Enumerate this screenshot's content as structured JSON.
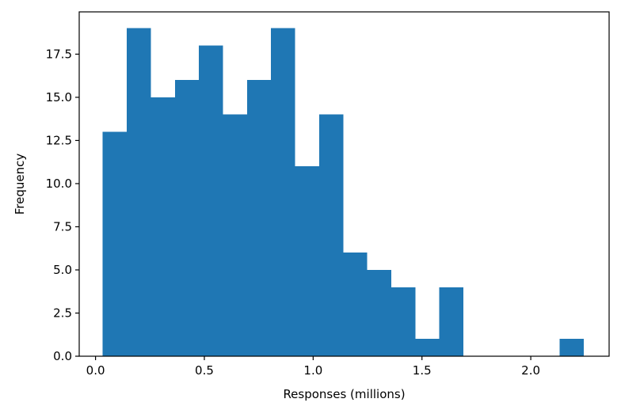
{
  "chart_data": {
    "type": "bar",
    "title": "",
    "xlabel": "Responses (millions)",
    "ylabel": "Frequency",
    "xlim": [
      -0.075,
      2.36
    ],
    "ylim": [
      0,
      19.95
    ],
    "bin_width": 0.1105,
    "bin_edges": [
      0.033,
      0.1435,
      0.254,
      0.3645,
      0.475,
      0.5855,
      0.696,
      0.8065,
      0.917,
      1.0275,
      1.138,
      1.2485,
      1.359,
      1.4695,
      1.58,
      1.6905,
      1.801,
      1.9115,
      2.022,
      2.1325,
      2.243
    ],
    "values": [
      13,
      19,
      15,
      16,
      18,
      14,
      16,
      19,
      11,
      14,
      6,
      5,
      4,
      1,
      4,
      0,
      0,
      0,
      0,
      1
    ],
    "x_ticks": [
      0.0,
      0.5,
      1.0,
      1.5,
      2.0
    ],
    "x_tick_labels": [
      "0.0",
      "0.5",
      "1.0",
      "1.5",
      "2.0"
    ],
    "y_ticks": [
      0.0,
      2.5,
      5.0,
      7.5,
      10.0,
      12.5,
      15.0,
      17.5
    ],
    "y_tick_labels": [
      "0.0",
      "2.5",
      "5.0",
      "7.5",
      "10.0",
      "12.5",
      "15.0",
      "17.5"
    ],
    "bar_color": "#1f77b4",
    "grid": false,
    "legend": "none"
  }
}
